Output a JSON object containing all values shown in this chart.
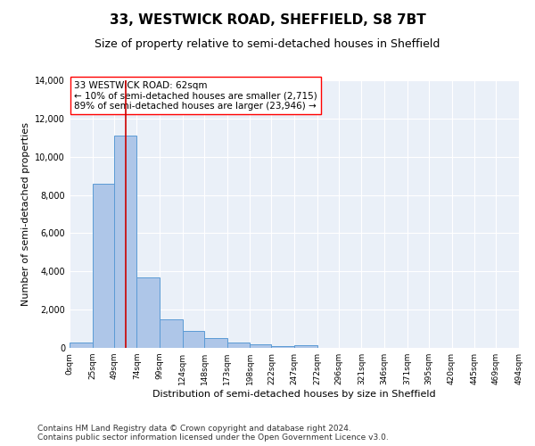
{
  "title1": "33, WESTWICK ROAD, SHEFFIELD, S8 7BT",
  "title2": "Size of property relative to semi-detached houses in Sheffield",
  "xlabel": "Distribution of semi-detached houses by size in Sheffield",
  "ylabel": "Number of semi-detached properties",
  "bar_color": "#aec6e8",
  "bar_edge_color": "#5b9bd5",
  "background_color": "#eaf0f8",
  "annotation_text": "33 WESTWICK ROAD: 62sqm\n← 10% of semi-detached houses are smaller (2,715)\n89% of semi-detached houses are larger (23,946) →",
  "vline_x": 62,
  "vline_color": "#cc0000",
  "bins": [
    0,
    25,
    49,
    74,
    99,
    124,
    148,
    173,
    198,
    222,
    247,
    272,
    296,
    321,
    346,
    371,
    395,
    420,
    445,
    469,
    494
  ],
  "bin_labels": [
    "0sqm",
    "25sqm",
    "49sqm",
    "74sqm",
    "99sqm",
    "124sqm",
    "148sqm",
    "173sqm",
    "198sqm",
    "222sqm",
    "247sqm",
    "272sqm",
    "296sqm",
    "321sqm",
    "346sqm",
    "371sqm",
    "395sqm",
    "420sqm",
    "445sqm",
    "469sqm",
    "494sqm"
  ],
  "bar_heights": [
    300,
    8600,
    11100,
    3700,
    1500,
    900,
    500,
    300,
    200,
    100,
    150,
    0,
    0,
    0,
    0,
    0,
    0,
    0,
    0,
    0
  ],
  "ylim": [
    0,
    14000
  ],
  "yticks": [
    0,
    2000,
    4000,
    6000,
    8000,
    10000,
    12000,
    14000
  ],
  "footnote": "Contains HM Land Registry data © Crown copyright and database right 2024.\nContains public sector information licensed under the Open Government Licence v3.0.",
  "title1_fontsize": 11,
  "title2_fontsize": 9,
  "annotation_fontsize": 7.5,
  "footnote_fontsize": 6.5,
  "ylabel_fontsize": 8,
  "xlabel_fontsize": 8
}
